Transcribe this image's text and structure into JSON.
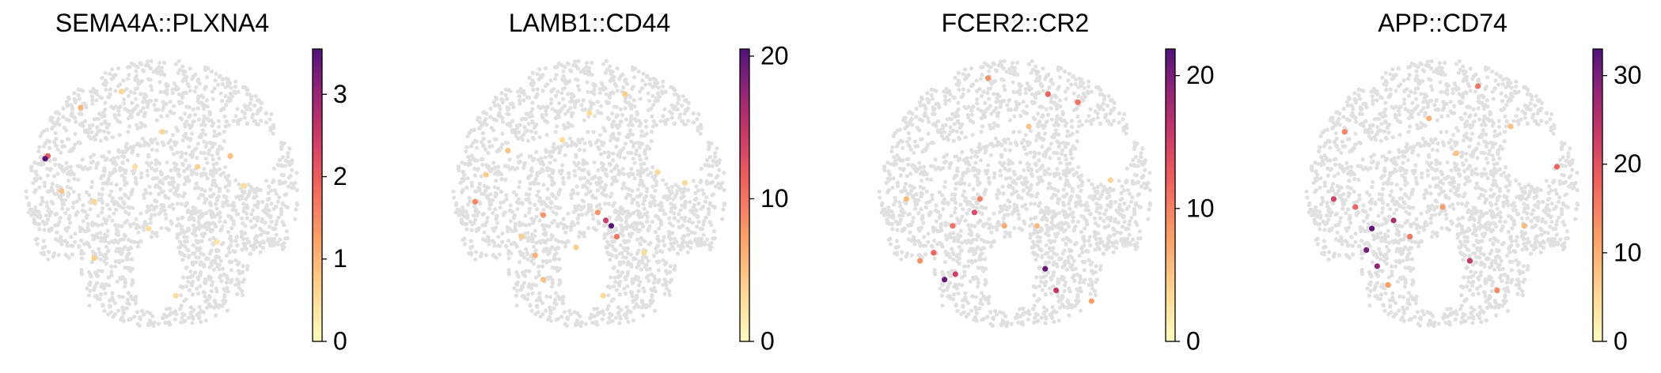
{
  "chart_data": [
    {
      "type": "scatter",
      "title": "SEMA4A::PLXNA4",
      "colormap": "magma_r",
      "null_color": "#e0e0e0",
      "colorbar": {
        "min": 0,
        "max": 3.55,
        "ticks": [
          0,
          1,
          2,
          3
        ]
      },
      "highlights": [
        {
          "x": 0.07,
          "y": 0.37,
          "value": 3.5
        },
        {
          "x": 0.08,
          "y": 0.36,
          "value": 2.0
        },
        {
          "x": 0.2,
          "y": 0.18,
          "value": 1.0
        },
        {
          "x": 0.13,
          "y": 0.49,
          "value": 0.8
        },
        {
          "x": 0.5,
          "y": 0.27,
          "value": 0.6
        },
        {
          "x": 0.63,
          "y": 0.4,
          "value": 0.7
        },
        {
          "x": 0.75,
          "y": 0.36,
          "value": 0.9
        },
        {
          "x": 0.8,
          "y": 0.47,
          "value": 0.5
        },
        {
          "x": 0.25,
          "y": 0.53,
          "value": 0.6
        },
        {
          "x": 0.45,
          "y": 0.63,
          "value": 0.5
        },
        {
          "x": 0.7,
          "y": 0.68,
          "value": 0.4
        },
        {
          "x": 0.25,
          "y": 0.74,
          "value": 0.7
        },
        {
          "x": 0.55,
          "y": 0.88,
          "value": 0.5
        },
        {
          "x": 0.35,
          "y": 0.12,
          "value": 0.6
        },
        {
          "x": 0.4,
          "y": 0.4,
          "value": 0.4
        }
      ]
    },
    {
      "type": "scatter",
      "title": "LAMB1::CD44",
      "colormap": "magma_r",
      "null_color": "#e0e0e0",
      "colorbar": {
        "min": 0,
        "max": 20.5,
        "ticks": [
          0,
          10,
          20
        ]
      },
      "highlights": [
        {
          "x": 0.58,
          "y": 0.62,
          "value": 20
        },
        {
          "x": 0.56,
          "y": 0.6,
          "value": 14
        },
        {
          "x": 0.6,
          "y": 0.66,
          "value": 10
        },
        {
          "x": 0.53,
          "y": 0.57,
          "value": 8
        },
        {
          "x": 0.08,
          "y": 0.53,
          "value": 9
        },
        {
          "x": 0.33,
          "y": 0.58,
          "value": 8
        },
        {
          "x": 0.2,
          "y": 0.34,
          "value": 5
        },
        {
          "x": 0.3,
          "y": 0.73,
          "value": 6
        },
        {
          "x": 0.33,
          "y": 0.82,
          "value": 5
        },
        {
          "x": 0.45,
          "y": 0.7,
          "value": 4
        },
        {
          "x": 0.63,
          "y": 0.13,
          "value": 4
        },
        {
          "x": 0.5,
          "y": 0.2,
          "value": 3
        },
        {
          "x": 0.75,
          "y": 0.42,
          "value": 3
        },
        {
          "x": 0.85,
          "y": 0.46,
          "value": 3
        },
        {
          "x": 0.12,
          "y": 0.43,
          "value": 4
        },
        {
          "x": 0.7,
          "y": 0.72,
          "value": 3
        },
        {
          "x": 0.55,
          "y": 0.88,
          "value": 3
        },
        {
          "x": 0.25,
          "y": 0.66,
          "value": 4
        },
        {
          "x": 0.4,
          "y": 0.3,
          "value": 3
        }
      ]
    },
    {
      "type": "scatter",
      "title": "FCER2::CR2",
      "colormap": "magma_r",
      "null_color": "#e0e0e0",
      "colorbar": {
        "min": 0,
        "max": 22,
        "ticks": [
          0,
          10,
          20
        ]
      },
      "highlights": [
        {
          "x": 0.24,
          "y": 0.82,
          "value": 21
        },
        {
          "x": 0.28,
          "y": 0.8,
          "value": 15
        },
        {
          "x": 0.61,
          "y": 0.78,
          "value": 21
        },
        {
          "x": 0.65,
          "y": 0.86,
          "value": 16
        },
        {
          "x": 0.35,
          "y": 0.57,
          "value": 14
        },
        {
          "x": 0.2,
          "y": 0.72,
          "value": 12
        },
        {
          "x": 0.27,
          "y": 0.62,
          "value": 11
        },
        {
          "x": 0.37,
          "y": 0.52,
          "value": 10
        },
        {
          "x": 0.15,
          "y": 0.75,
          "value": 9
        },
        {
          "x": 0.62,
          "y": 0.13,
          "value": 12
        },
        {
          "x": 0.73,
          "y": 0.16,
          "value": 11
        },
        {
          "x": 0.4,
          "y": 0.07,
          "value": 9
        },
        {
          "x": 0.78,
          "y": 0.9,
          "value": 8
        },
        {
          "x": 0.46,
          "y": 0.62,
          "value": 7
        },
        {
          "x": 0.58,
          "y": 0.62,
          "value": 6
        },
        {
          "x": 0.1,
          "y": 0.52,
          "value": 6
        },
        {
          "x": 0.85,
          "y": 0.45,
          "value": 4
        },
        {
          "x": 0.55,
          "y": 0.25,
          "value": 5
        }
      ]
    },
    {
      "type": "scatter",
      "title": "APP::CD74",
      "colormap": "magma_r",
      "null_color": "#e0e0e0",
      "colorbar": {
        "min": 0,
        "max": 33,
        "ticks": [
          0,
          10,
          20,
          30
        ]
      },
      "highlights": [
        {
          "x": 0.24,
          "y": 0.63,
          "value": 32
        },
        {
          "x": 0.22,
          "y": 0.71,
          "value": 30
        },
        {
          "x": 0.26,
          "y": 0.77,
          "value": 28
        },
        {
          "x": 0.32,
          "y": 0.6,
          "value": 26
        },
        {
          "x": 0.6,
          "y": 0.75,
          "value": 24
        },
        {
          "x": 0.1,
          "y": 0.52,
          "value": 22
        },
        {
          "x": 0.18,
          "y": 0.55,
          "value": 18
        },
        {
          "x": 0.38,
          "y": 0.66,
          "value": 16
        },
        {
          "x": 0.14,
          "y": 0.27,
          "value": 15
        },
        {
          "x": 0.63,
          "y": 0.1,
          "value": 16
        },
        {
          "x": 0.92,
          "y": 0.4,
          "value": 18
        },
        {
          "x": 0.7,
          "y": 0.86,
          "value": 14
        },
        {
          "x": 0.5,
          "y": 0.55,
          "value": 12
        },
        {
          "x": 0.3,
          "y": 0.84,
          "value": 12
        },
        {
          "x": 0.45,
          "y": 0.22,
          "value": 10
        },
        {
          "x": 0.8,
          "y": 0.62,
          "value": 9
        },
        {
          "x": 0.55,
          "y": 0.35,
          "value": 8
        },
        {
          "x": 0.75,
          "y": 0.25,
          "value": 8
        }
      ]
    }
  ]
}
